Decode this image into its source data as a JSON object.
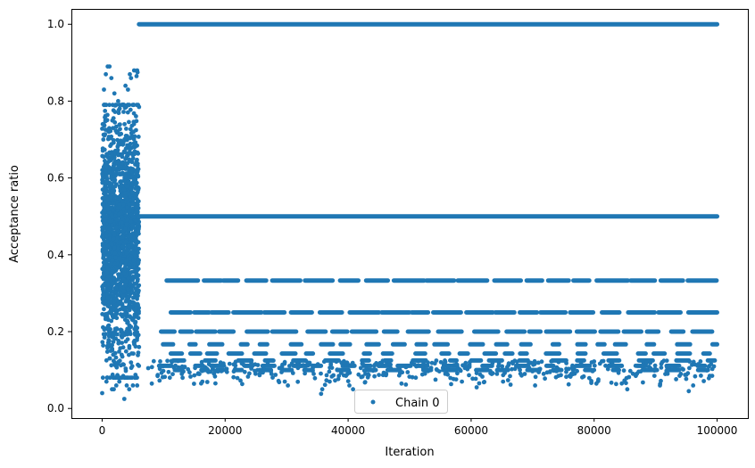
{
  "chart_data": {
    "type": "scatter",
    "title": "",
    "xlabel": "Iteration",
    "ylabel": "Acceptance ratio",
    "xlim": [
      -5000,
      105000
    ],
    "ylim": [
      -0.025,
      1.04
    ],
    "x_ticks": [
      0,
      20000,
      40000,
      60000,
      80000,
      100000
    ],
    "x_tick_labels": [
      "0",
      "20000",
      "40000",
      "60000",
      "80000",
      "100000"
    ],
    "y_ticks": [
      0.0,
      0.2,
      0.4,
      0.6,
      0.8,
      1.0
    ],
    "y_tick_labels": [
      "0.0",
      "0.2",
      "0.4",
      "0.6",
      "0.8",
      "1.0"
    ],
    "grid": false,
    "legend_position": "lower center",
    "series": [
      {
        "name": "Chain 0",
        "color": "#1f77b4",
        "marker": "point",
        "burn_in": {
          "x_range": [
            0,
            6000
          ],
          "y_range": [
            0.02,
            0.89
          ],
          "y_center": 0.45,
          "y_spread": 0.16,
          "point_count": 1800,
          "scatter_points": [
            [
              5200,
              0.88
            ],
            [
              5700,
              0.88
            ],
            [
              5750,
              0.875
            ],
            [
              5600,
              0.865
            ],
            [
              4500,
              0.87
            ],
            [
              4700,
              0.86
            ],
            [
              3800,
              0.84
            ],
            [
              4200,
              0.83
            ],
            [
              900,
              0.89
            ],
            [
              1200,
              0.89
            ],
            [
              600,
              0.87
            ],
            [
              1500,
              0.86
            ],
            [
              300,
              0.83
            ],
            [
              2000,
              0.82
            ],
            [
              2600,
              0.8
            ],
            [
              3400,
              0.79
            ],
            [
              100,
              0.74
            ],
            [
              200,
              0.7
            ],
            [
              2300,
              0.06
            ],
            [
              4000,
              0.06
            ],
            [
              4400,
              0.05
            ],
            [
              3600,
              0.025
            ],
            [
              5000,
              0.06
            ],
            [
              1600,
              0.05
            ],
            [
              1900,
              0.05
            ],
            [
              0,
              0.04
            ],
            [
              700,
              0.07
            ],
            [
              2800,
              0.07
            ],
            [
              5700,
              0.06
            ],
            [
              3200,
              0.08
            ]
          ]
        },
        "plateau_levels": [
          1.0,
          0.5,
          0.333,
          0.25,
          0.2,
          0.167,
          0.143,
          0.125,
          0.111,
          0.1
        ],
        "plateau_start": 6000,
        "plateau_end": 100000,
        "lower_scatter_y_range": [
          0.04,
          0.125
        ],
        "lower_scatter_points": [
          [
            7500,
            0.105
          ],
          [
            8400,
            0.123
          ],
          [
            9900,
            0.11
          ],
          [
            10800,
            0.095
          ],
          [
            11000,
            0.08
          ],
          [
            16100,
            0.065
          ],
          [
            16300,
            0.07
          ],
          [
            15600,
            0.09
          ],
          [
            17000,
            0.1
          ],
          [
            20300,
            0.095
          ],
          [
            22700,
            0.1
          ],
          [
            23200,
            0.095
          ],
          [
            25600,
            0.09
          ],
          [
            29700,
            0.07
          ],
          [
            30200,
            0.06
          ],
          [
            34400,
            0.09
          ],
          [
            35800,
            0.05
          ],
          [
            35600,
            0.038
          ],
          [
            37000,
            0.07
          ],
          [
            39900,
            0.09
          ],
          [
            40200,
            0.06
          ],
          [
            40800,
            0.05
          ],
          [
            42800,
            0.09
          ],
          [
            46200,
            0.09
          ],
          [
            51000,
            0.08
          ],
          [
            52600,
            0.1
          ],
          [
            55800,
            0.09
          ],
          [
            58500,
            0.07
          ],
          [
            60900,
            0.055
          ],
          [
            64200,
            0.09
          ],
          [
            65200,
            0.07
          ],
          [
            66000,
            0.1
          ],
          [
            70400,
            0.06
          ],
          [
            71800,
            0.09
          ],
          [
            74200,
            0.085
          ],
          [
            76000,
            0.085
          ],
          [
            76300,
            0.09
          ],
          [
            80000,
            0.1
          ],
          [
            84500,
            0.065
          ],
          [
            85400,
            0.05
          ],
          [
            86900,
            0.09
          ],
          [
            89800,
            0.085
          ],
          [
            90700,
            0.06
          ],
          [
            94100,
            0.09
          ],
          [
            95400,
            0.045
          ],
          [
            96100,
            0.06
          ],
          [
            99200,
            0.085
          ]
        ]
      }
    ]
  }
}
